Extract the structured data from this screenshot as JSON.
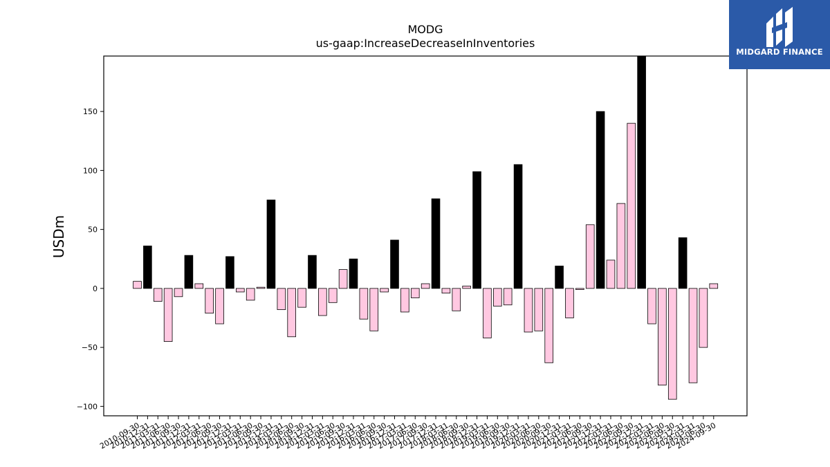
{
  "brand": {
    "name": "MIDGARD FINANCE"
  },
  "chart_data": {
    "type": "bar",
    "title": "MODG",
    "subtitle": "us-gaap:IncreaseDecreaseInInventories",
    "xlabel": "",
    "ylabel": "USDm",
    "ylim": [
      -108,
      197
    ],
    "yticks": [
      -100,
      -50,
      0,
      50,
      100,
      150
    ],
    "grid": false,
    "legend": "none",
    "colors": {
      "q4": "#000000",
      "quarter": "#ffc8e1",
      "edge": "#000000"
    },
    "categories": [
      "2010-09-30",
      "2010-12-31",
      "2011-03-31",
      "2011-06-30",
      "2011-09-30",
      "2011-12-31",
      "2012-03-31",
      "2012-06-30",
      "2012-09-30",
      "2012-12-31",
      "2013-03-31",
      "2013-06-30",
      "2013-09-30",
      "2013-12-31",
      "2014-03-31",
      "2014-06-30",
      "2014-09-30",
      "2014-12-31",
      "2015-03-31",
      "2015-06-30",
      "2015-09-30",
      "2015-12-31",
      "2016-03-31",
      "2016-06-30",
      "2016-09-30",
      "2016-12-31",
      "2017-03-31",
      "2017-06-30",
      "2017-09-30",
      "2017-12-31",
      "2018-03-31",
      "2018-06-30",
      "2018-09-30",
      "2018-12-31",
      "2019-03-31",
      "2019-06-30",
      "2019-09-30",
      "2019-12-31",
      "2020-03-31",
      "2020-06-30",
      "2020-09-30",
      "2020-12-31",
      "2021-03-31",
      "2021-06-30",
      "2021-09-30",
      "2021-12-31",
      "2022-03-31",
      "2022-06-30",
      "2022-09-30",
      "2022-12-31",
      "2023-03-31",
      "2023-06-30",
      "2023-09-30",
      "2023-12-31",
      "2024-03-31",
      "2024-06-30",
      "2024-09-30"
    ],
    "values": [
      6,
      36,
      -11,
      -45,
      -7,
      28,
      4,
      -21,
      -30,
      27,
      -3,
      -10,
      1,
      75,
      -18,
      -41,
      -16,
      28,
      -23,
      -12,
      16,
      25,
      -26,
      -36,
      -3,
      41,
      -20,
      -8,
      4,
      76,
      -4,
      -19,
      2,
      99,
      -42,
      -15,
      -14,
      105,
      -37,
      -36,
      -63,
      19,
      -25,
      -1,
      54,
      150,
      24,
      72,
      140,
      197,
      -30,
      -82,
      -94,
      43,
      -80,
      -50,
      4
    ],
    "q4_flags": [
      false,
      true,
      false,
      false,
      false,
      true,
      false,
      false,
      false,
      true,
      false,
      false,
      false,
      true,
      false,
      false,
      false,
      true,
      false,
      false,
      false,
      true,
      false,
      false,
      false,
      true,
      false,
      false,
      false,
      true,
      false,
      false,
      false,
      true,
      false,
      false,
      false,
      true,
      false,
      false,
      false,
      true,
      false,
      false,
      false,
      true,
      false,
      false,
      false,
      true,
      false,
      false,
      false,
      true,
      false,
      false,
      false
    ]
  }
}
